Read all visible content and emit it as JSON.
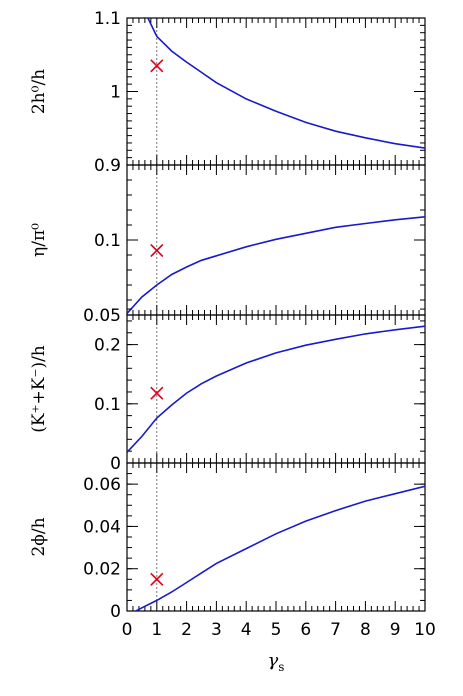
{
  "colors": {
    "curve": "#1a1acc",
    "marker": "#e0001a",
    "reference_line": "#555555"
  },
  "chart_data": {
    "type": "line",
    "layout": "four vertically stacked panels sharing the x axis",
    "x_axis": {
      "label_main": "γ",
      "label_sub": "s",
      "xlim": [
        0,
        10
      ],
      "tick_labels": [
        "0",
        "1",
        "2",
        "3",
        "4",
        "5",
        "6",
        "7",
        "8",
        "9",
        "10"
      ],
      "minor_tick_step": 0.2
    },
    "reference_line_x": 1,
    "panels": [
      {
        "ylabel": "2h⁰/h",
        "ylim": [
          0.9,
          1.1
        ],
        "ytick_values": [
          0.9,
          1,
          1.1
        ],
        "ytick_labels": [
          "0.9",
          "1",
          "1.1"
        ],
        "minor_step": 0.01,
        "curve": {
          "x": [
            0.7,
            1,
            1.5,
            2,
            2.5,
            3,
            3.5,
            4,
            5,
            6,
            7,
            8,
            9,
            10
          ],
          "y": [
            1.1,
            1.075,
            1.055,
            1.04,
            1.026,
            1.012,
            1.001,
            0.99,
            0.973,
            0.958,
            0.946,
            0.937,
            0.929,
            0.923
          ]
        },
        "marker": {
          "x": 1,
          "y": 1.035
        }
      },
      {
        "ylabel": "η/π⁰",
        "ylim": [
          0.05,
          0.15
        ],
        "ytick_values": [
          0.05,
          0.1
        ],
        "ytick_labels": [
          "0.05",
          "0.1"
        ],
        "minor_step": 0.01,
        "curve": {
          "x": [
            0,
            0.5,
            1,
            1.5,
            2,
            2.5,
            3,
            4,
            5,
            6,
            7,
            8,
            9,
            10
          ],
          "y": [
            0.051,
            0.062,
            0.07,
            0.077,
            0.082,
            0.0865,
            0.0895,
            0.0955,
            0.1005,
            0.1045,
            0.1085,
            0.111,
            0.1135,
            0.1155
          ]
        },
        "marker": {
          "x": 1,
          "y": 0.093
        }
      },
      {
        "ylabel": "(K⁺+K⁻)/h",
        "ylim": [
          0,
          0.25
        ],
        "ytick_values": [
          0,
          0.1,
          0.2
        ],
        "ytick_labels": [
          "0",
          "0.1",
          "0.2"
        ],
        "minor_step": 0.02,
        "curve": {
          "x": [
            0,
            0.5,
            1,
            1.5,
            2,
            2.5,
            3,
            4,
            5,
            6,
            7,
            8,
            9,
            10
          ],
          "y": [
            0.018,
            0.045,
            0.076,
            0.098,
            0.118,
            0.134,
            0.147,
            0.169,
            0.186,
            0.199,
            0.209,
            0.218,
            0.225,
            0.231
          ]
        },
        "marker": {
          "x": 1,
          "y": 0.118
        }
      },
      {
        "ylabel": "2ϕ/h",
        "ylim": [
          0,
          0.07
        ],
        "ytick_values": [
          0,
          0.02,
          0.04,
          0.06
        ],
        "ytick_labels": [
          "0",
          "0.02",
          "0.04",
          "0.06"
        ],
        "minor_step": 0.005,
        "curve": {
          "x": [
            0.3,
            0.5,
            1,
            1.5,
            2,
            2.5,
            3,
            4,
            5,
            6,
            7,
            8,
            9,
            10
          ],
          "y": [
            0,
            0.0015,
            0.005,
            0.009,
            0.0135,
            0.018,
            0.0225,
            0.0295,
            0.0365,
            0.0425,
            0.0475,
            0.052,
            0.0555,
            0.059
          ]
        },
        "marker": {
          "x": 1,
          "y": 0.015
        }
      }
    ]
  }
}
